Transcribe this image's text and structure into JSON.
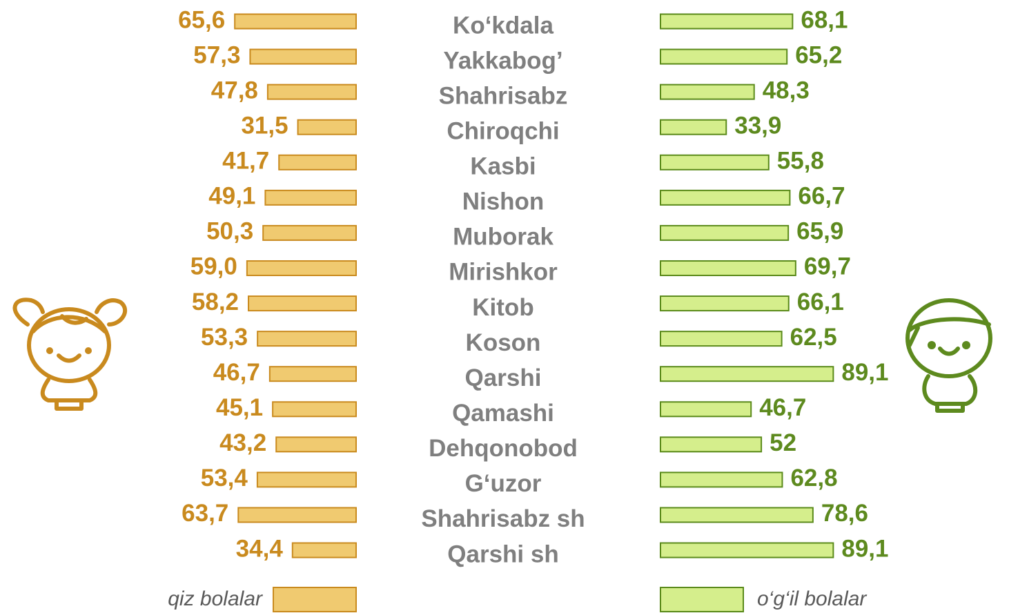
{
  "chart_data": {
    "type": "butterfly-bar",
    "categories": [
      "Ko‘kdala",
      "Yakkabog’",
      "Shahrisabz",
      "Chiroqchi",
      "Kasbi",
      "Nishon",
      "Muborak",
      "Mirishkor",
      "Kitob",
      "Koson",
      "Qarshi",
      "Qamashi",
      "Dehqonobod",
      "G‘uzor",
      "Shahrisabz sh",
      "Qarshi sh"
    ],
    "series": [
      {
        "name": "qiz bolalar",
        "color": "#f0ca70",
        "edge": "#c98a1e",
        "label_color": "#c98a1e",
        "values": [
          65.6,
          57.3,
          47.8,
          31.5,
          41.7,
          49.1,
          50.3,
          59.0,
          58.2,
          53.3,
          46.7,
          45.1,
          43.2,
          53.4,
          63.7,
          34.4
        ],
        "value_labels": [
          "65,6",
          "57,3",
          "47,8",
          "31,5",
          "41,7",
          "49,1",
          "50,3",
          "59,0",
          "58,2",
          "53,3",
          "46,7",
          "45,1",
          "43,2",
          "53,4",
          "63,7",
          "34,4"
        ]
      },
      {
        "name": "o‘g‘il bolalar",
        "color": "#d5ee8c",
        "edge": "#5a8a1a",
        "label_color": "#5d8a1e",
        "values": [
          68.1,
          65.2,
          48.3,
          33.9,
          55.8,
          66.7,
          65.9,
          69.7,
          66.1,
          62.5,
          89.1,
          46.7,
          52,
          62.8,
          78.6,
          89.1
        ],
        "value_labels": [
          "68,1",
          "65,2",
          "48,3",
          "33,9",
          "55,8",
          "66,7",
          "65,9",
          "69,7",
          "66,1",
          "62,5",
          "89,1",
          "46,7",
          "52",
          "62,8",
          "78,6",
          "89,1"
        ]
      }
    ]
  }
}
